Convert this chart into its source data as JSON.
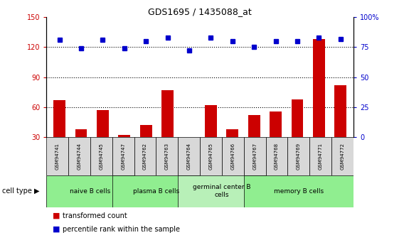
{
  "title": "GDS1695 / 1435088_at",
  "samples": [
    "GSM94741",
    "GSM94744",
    "GSM94745",
    "GSM94747",
    "GSM94762",
    "GSM94763",
    "GSM94764",
    "GSM94765",
    "GSM94766",
    "GSM94767",
    "GSM94768",
    "GSM94769",
    "GSM94771",
    "GSM94772"
  ],
  "transformed_count": [
    67,
    38,
    57,
    32,
    42,
    77,
    30,
    62,
    38,
    52,
    56,
    68,
    128,
    82
  ],
  "percentile_rank": [
    81,
    74,
    81,
    74,
    80,
    83,
    72,
    83,
    80,
    75,
    80,
    80,
    83,
    82
  ],
  "cell_types": [
    {
      "label": "naive B cells",
      "start": 0,
      "end": 3,
      "color": "#90ee90"
    },
    {
      "label": "plasma B cells",
      "start": 3,
      "end": 6,
      "color": "#90ee90"
    },
    {
      "label": "germinal center B\ncells",
      "start": 6,
      "end": 9,
      "color": "#b8f0b8"
    },
    {
      "label": "memory B cells",
      "start": 9,
      "end": 13,
      "color": "#90ee90"
    }
  ],
  "bar_color": "#cc0000",
  "dot_color": "#0000cc",
  "left_ylim": [
    30,
    150
  ],
  "left_yticks": [
    30,
    60,
    90,
    120,
    150
  ],
  "right_ylim": [
    0,
    100
  ],
  "right_yticks": [
    0,
    25,
    50,
    75,
    100
  ],
  "right_yticklabels": [
    "0",
    "25",
    "50",
    "75",
    "100%"
  ],
  "grid_lines": [
    60,
    90,
    120
  ],
  "bg_color": "#d8d8d8",
  "naive_indices": [
    0,
    1,
    2,
    3
  ],
  "plasma_indices": [
    3,
    4,
    5,
    6
  ],
  "germinal_indices": [
    6,
    7,
    8,
    9
  ],
  "memory_indices": [
    9,
    10,
    11,
    12,
    13
  ]
}
